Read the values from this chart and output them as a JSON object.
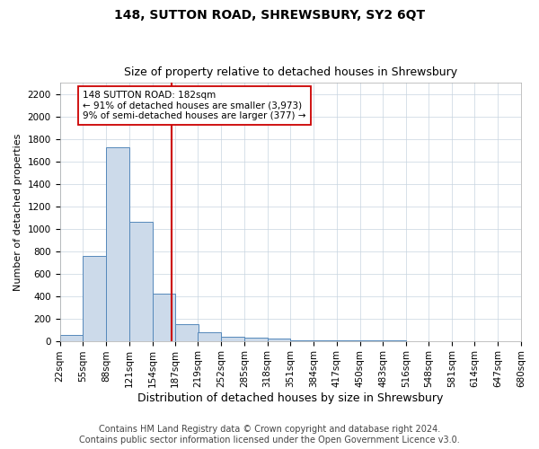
{
  "title": "148, SUTTON ROAD, SHREWSBURY, SY2 6QT",
  "subtitle": "Size of property relative to detached houses in Shrewsbury",
  "xlabel": "Distribution of detached houses by size in Shrewsbury",
  "ylabel": "Number of detached properties",
  "footer_line1": "Contains HM Land Registry data © Crown copyright and database right 2024.",
  "footer_line2": "Contains public sector information licensed under the Open Government Licence v3.0.",
  "bins": [
    22,
    55,
    88,
    121,
    154,
    187,
    219,
    252,
    285,
    318,
    351,
    384,
    417,
    450,
    483,
    516,
    548,
    581,
    614,
    647,
    680
  ],
  "bin_labels": [
    "22sqm",
    "55sqm",
    "88sqm",
    "121sqm",
    "154sqm",
    "187sqm",
    "219sqm",
    "252sqm",
    "285sqm",
    "318sqm",
    "351sqm",
    "384sqm",
    "417sqm",
    "450sqm",
    "483sqm",
    "516sqm",
    "548sqm",
    "581sqm",
    "614sqm",
    "647sqm",
    "680sqm"
  ],
  "values": [
    50,
    760,
    1730,
    1060,
    420,
    150,
    80,
    40,
    30,
    20,
    5,
    3,
    2,
    1,
    1,
    0,
    0,
    0,
    0,
    0
  ],
  "bar_color": "#ccdaea",
  "bar_edge_color": "#5588bb",
  "property_size": 182,
  "property_line_color": "#cc0000",
  "annotation_line1": "148 SUTTON ROAD: 182sqm",
  "annotation_line2": "← 91% of detached houses are smaller (3,973)",
  "annotation_line3": "9% of semi-detached houses are larger (377) →",
  "annotation_box_color": "#ffffff",
  "annotation_box_edge": "#cc0000",
  "ylim": [
    0,
    2300
  ],
  "yticks": [
    0,
    200,
    400,
    600,
    800,
    1000,
    1200,
    1400,
    1600,
    1800,
    2000,
    2200
  ],
  "bg_color": "#ffffff",
  "grid_color": "#c8d4e0",
  "title_fontsize": 10,
  "subtitle_fontsize": 9,
  "axis_ylabel_fontsize": 8,
  "axis_xlabel_fontsize": 9,
  "tick_fontsize": 7.5,
  "annot_fontsize": 7.5,
  "footer_fontsize": 7
}
